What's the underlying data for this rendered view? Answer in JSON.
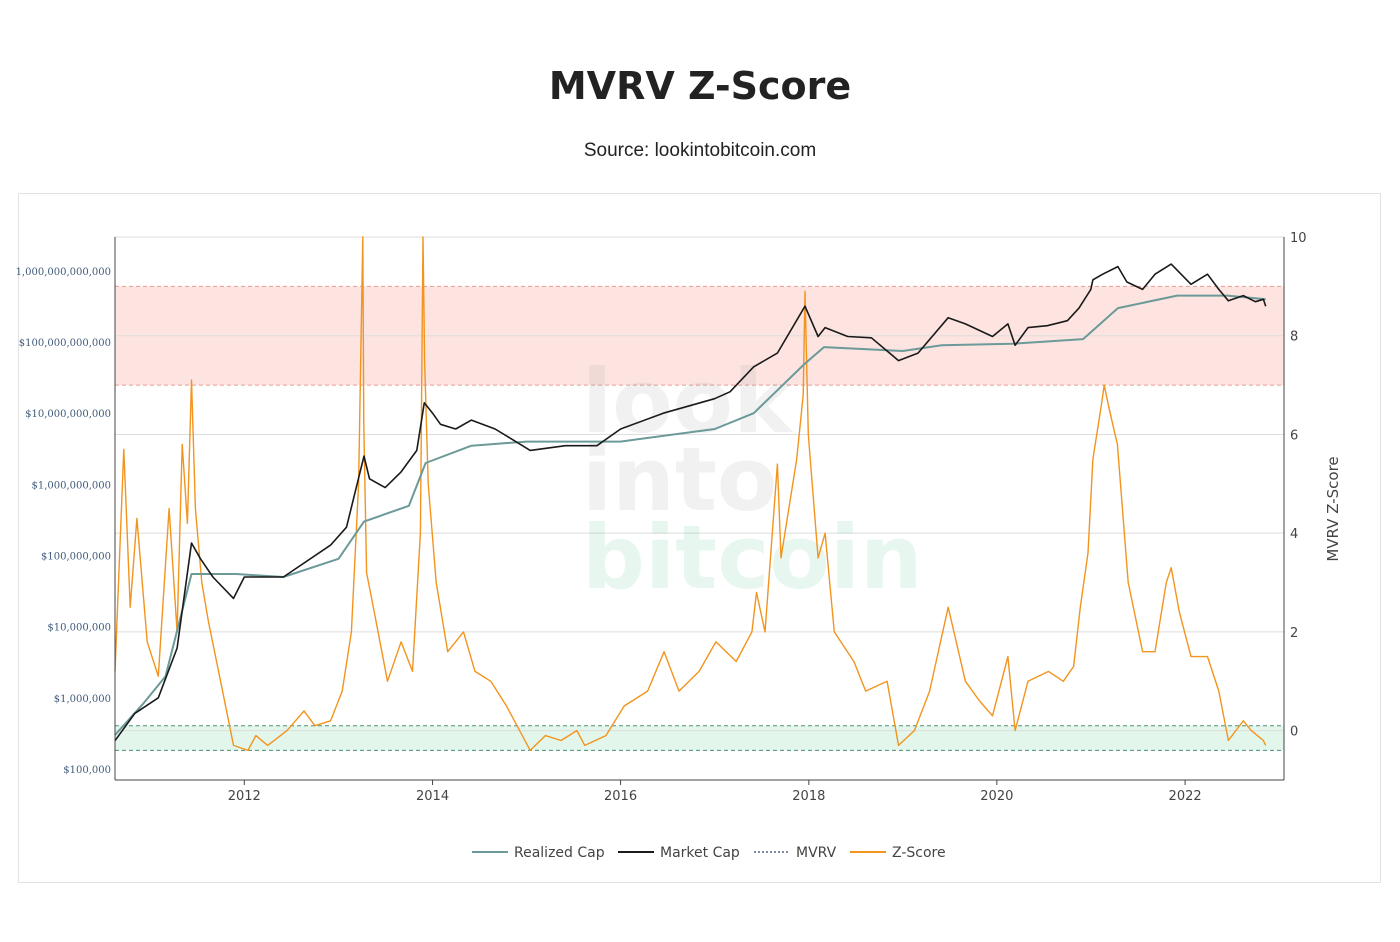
{
  "title": "MVRV Z-Score",
  "subtitle": "Source: lookintobitcoin.com",
  "watermark": [
    "look",
    "into",
    "bitcoin"
  ],
  "colors": {
    "realized_cap": "#6b9a98",
    "market_cap": "#1a1a1a",
    "mvrv": "#7a8ea6",
    "z_score": "#f2941d",
    "overvalued_band": "#fde4e1",
    "undervalued_band": "#e3f6ec"
  },
  "chart_data": {
    "type": "line",
    "xlim": [
      "2010-08-17",
      "2023-01-20"
    ],
    "x_ticks": [
      "2012",
      "2014",
      "2016",
      "2018",
      "2020",
      "2022"
    ],
    "y_left": {
      "scale": "log",
      "lim": [
        70000,
        3000000000000
      ],
      "ticks": [
        "$100,000",
        "$1,000,000",
        "$10,000,000",
        "$100,000,000",
        "$1,000,000,000",
        "$10,000,000,000",
        "$100,000,000,000",
        "1,000,000,000,000"
      ]
    },
    "y_right": {
      "label": "MVRV Z-Score",
      "lim": [
        -1,
        10
      ],
      "ticks": [
        "0",
        "2",
        "4",
        "6",
        "8",
        "10"
      ]
    },
    "bands": [
      {
        "name": "overvalued",
        "from": 7,
        "to": 9
      },
      {
        "name": "undervalued",
        "from": -0.4,
        "to": 0.1
      }
    ],
    "legend": [
      "Realized Cap",
      "Market Cap",
      "MVRV",
      "Z-Score"
    ],
    "series": [
      {
        "name": "Realized Cap",
        "axis": "left",
        "x": [
          "2010-08-17",
          "2010-12-01",
          "2011-03-01",
          "2011-06-10",
          "2011-12-01",
          "2012-06-01",
          "2013-01-01",
          "2013-04-10",
          "2013-10-01",
          "2013-12-05",
          "2014-06-01",
          "2015-01-01",
          "2016-01-01",
          "2017-01-01",
          "2017-06-01",
          "2017-12-17",
          "2018-03-01",
          "2019-01-01",
          "2019-06-01",
          "2020-03-01",
          "2020-12-01",
          "2021-04-15",
          "2021-12-01",
          "2022-06-15",
          "2022-11-10"
        ],
        "values": [
          300000,
          800000,
          2000000,
          55000000,
          55000000,
          50000000,
          90000000,
          300000000,
          500000000,
          2000000000,
          3500000000,
          4000000000,
          4000000000,
          6000000000,
          10000000000,
          50000000000,
          85000000000,
          75000000000,
          90000000000,
          95000000000,
          110000000000,
          300000000000,
          450000000000,
          450000000000,
          400000000000
        ]
      },
      {
        "name": "Market Cap",
        "axis": "left",
        "x": [
          "2010-08-17",
          "2010-11-01",
          "2011-02-01",
          "2011-04-15",
          "2011-06-10",
          "2011-07-15",
          "2011-09-01",
          "2011-11-20",
          "2012-01-01",
          "2012-06-01",
          "2012-12-01",
          "2013-02-01",
          "2013-04-10",
          "2013-05-01",
          "2013-07-01",
          "2013-09-01",
          "2013-11-01",
          "2013-11-30",
          "2014-01-01",
          "2014-02-01",
          "2014-04-01",
          "2014-06-01",
          "2014-09-01",
          "2015-01-15",
          "2015-06-01",
          "2015-10-01",
          "2016-01-01",
          "2016-06-15",
          "2016-12-31",
          "2017-03-01",
          "2017-06-01",
          "2017-09-01",
          "2017-12-17",
          "2018-02-06",
          "2018-03-05",
          "2018-06-01",
          "2018-09-01",
          "2018-12-15",
          "2019-03-01",
          "2019-06-26",
          "2019-09-01",
          "2019-12-15",
          "2020-02-13",
          "2020-03-12",
          "2020-05-01",
          "2020-07-15",
          "2020-10-01",
          "2020-11-15",
          "2020-12-31",
          "2021-01-08",
          "2021-02-15",
          "2021-04-15",
          "2021-05-20",
          "2021-07-20",
          "2021-09-06",
          "2021-11-08",
          "2022-01-24",
          "2022-03-29",
          "2022-05-12",
          "2022-06-18",
          "2022-08-15",
          "2022-10-01",
          "2022-11-01",
          "2022-11-10"
        ],
        "values": [
          250000,
          600000,
          1000000,
          5000000,
          150000000,
          90000000,
          50000000,
          25000000,
          50000000,
          50000000,
          140000000,
          250000000,
          2500000000,
          1200000000,
          900000000,
          1500000000,
          3000000000,
          14000000000,
          10000000000,
          7000000000,
          6000000000,
          8000000000,
          6000000000,
          3000000000,
          3500000000,
          3500000000,
          6000000000,
          10000000000,
          16000000000,
          20000000000,
          45000000000,
          70000000000,
          320000000000,
          120000000000,
          160000000000,
          120000000000,
          115000000000,
          55000000000,
          70000000000,
          220000000000,
          180000000000,
          120000000000,
          180000000000,
          90000000000,
          160000000000,
          170000000000,
          200000000000,
          300000000000,
          550000000000,
          750000000000,
          900000000000,
          1150000000000,
          700000000000,
          550000000000,
          900000000000,
          1250000000000,
          650000000000,
          900000000000,
          550000000000,
          380000000000,
          450000000000,
          370000000000,
          400000000000,
          320000000000
        ]
      },
      {
        "name": "Z-Score",
        "axis": "right",
        "x": [
          "2010-08-17",
          "2010-09-20",
          "2010-10-15",
          "2010-11-10",
          "2010-12-20",
          "2011-02-01",
          "2011-03-15",
          "2011-04-15",
          "2011-05-05",
          "2011-05-25",
          "2011-06-10",
          "2011-06-25",
          "2011-07-20",
          "2011-08-15",
          "2011-10-01",
          "2011-11-20",
          "2012-01-15",
          "2012-02-15",
          "2012-04-01",
          "2012-06-15",
          "2012-08-20",
          "2012-10-01",
          "2012-12-01",
          "2013-01-15",
          "2013-02-20",
          "2013-03-20",
          "2013-04-05",
          "2013-04-09",
          "2013-04-20",
          "2013-05-20",
          "2013-07-10",
          "2013-09-01",
          "2013-10-15",
          "2013-11-15",
          "2013-11-25",
          "2013-12-01",
          "2013-12-15",
          "2014-01-15",
          "2014-03-01",
          "2014-05-01",
          "2014-06-15",
          "2014-08-15",
          "2014-10-15",
          "2015-01-15",
          "2015-03-15",
          "2015-05-15",
          "2015-07-15",
          "2015-08-15",
          "2015-11-05",
          "2016-01-15",
          "2016-04-15",
          "2016-06-18",
          "2016-08-15",
          "2016-11-01",
          "2017-01-05",
          "2017-03-25",
          "2017-05-25",
          "2017-06-12",
          "2017-07-15",
          "2017-09-01",
          "2017-09-15",
          "2017-11-15",
          "2017-12-10",
          "2017-12-17",
          "2017-12-30",
          "2018-02-06",
          "2018-03-05",
          "2018-04-10",
          "2018-06-25",
          "2018-08-10",
          "2018-11-01",
          "2018-12-15",
          "2019-02-15",
          "2019-04-15",
          "2019-06-26",
          "2019-09-01",
          "2019-10-26",
          "2019-12-15",
          "2020-02-13",
          "2020-03-12",
          "2020-05-01",
          "2020-07-20",
          "2020-09-15",
          "2020-10-25",
          "2020-11-20",
          "2020-12-20",
          "2021-01-08",
          "2021-02-10",
          "2021-02-21",
          "2021-03-13",
          "2021-04-13",
          "2021-05-25",
          "2021-07-20",
          "2021-09-06",
          "2021-10-20",
          "2021-11-08",
          "2021-12-10",
          "2022-01-24",
          "2022-03-29",
          "2022-05-12",
          "2022-06-18",
          "2022-08-15",
          "2022-09-15",
          "2022-11-01",
          "2022-11-10"
        ],
        "values": [
          1.2,
          5.7,
          2.5,
          4.3,
          1.8,
          1.1,
          4.5,
          2.0,
          5.8,
          4.2,
          7.1,
          4.5,
          3.0,
          2.2,
          1.0,
          -0.3,
          -0.4,
          -0.1,
          -0.3,
          0.0,
          0.4,
          0.1,
          0.2,
          0.8,
          2.0,
          5.0,
          10.0,
          6.2,
          3.2,
          2.4,
          1.0,
          1.8,
          1.2,
          4.0,
          10.0,
          7.5,
          5.0,
          3.0,
          1.6,
          2.0,
          1.2,
          1.0,
          0.5,
          -0.4,
          -0.1,
          -0.2,
          0.0,
          -0.3,
          -0.1,
          0.5,
          0.8,
          1.6,
          0.8,
          1.2,
          1.8,
          1.4,
          2.0,
          2.8,
          2.0,
          5.4,
          3.5,
          5.5,
          6.8,
          8.9,
          6.0,
          3.5,
          4.0,
          2.0,
          1.4,
          0.8,
          1.0,
          -0.3,
          0.0,
          0.8,
          2.5,
          1.0,
          0.6,
          0.3,
          1.5,
          0.0,
          1.0,
          1.2,
          1.0,
          1.3,
          2.5,
          3.6,
          5.5,
          6.6,
          7.0,
          6.5,
          5.8,
          3.0,
          1.6,
          1.6,
          3.0,
          3.3,
          2.4,
          1.5,
          1.5,
          0.8,
          -0.2,
          0.2,
          0.0,
          -0.2,
          -0.3
        ]
      }
    ]
  }
}
